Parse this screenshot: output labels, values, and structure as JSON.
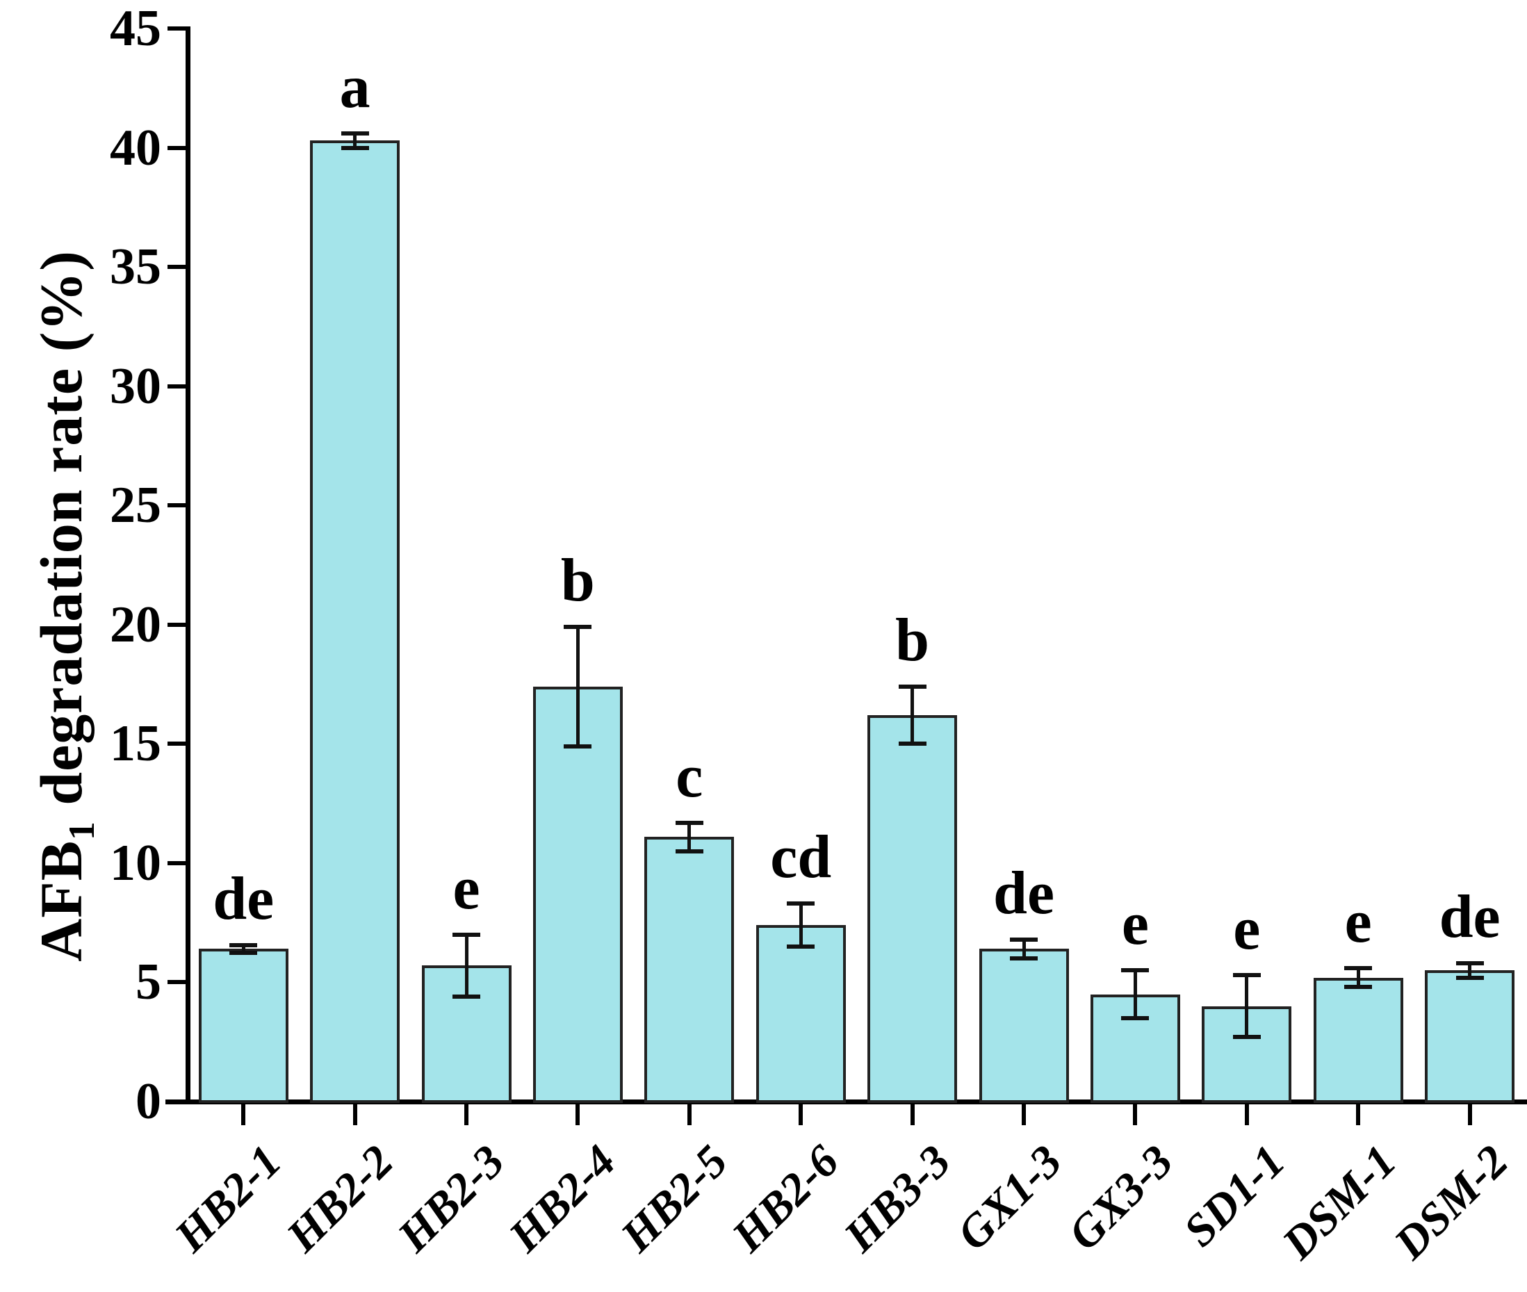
{
  "figure": {
    "ylabel_parts": {
      "prefix": "AFB",
      "sub": "1",
      "suffix": " degradation rate (%)"
    }
  },
  "chart_data": {
    "type": "bar",
    "title": "",
    "xlabel": "",
    "ylabel": "AFB1 degradation rate (%)",
    "categories": [
      "HB2-1",
      "HB2-2",
      "HB2-3",
      "HB2-4",
      "HB2-5",
      "HB2-6",
      "HB3-3",
      "GX1-3",
      "GX3-3",
      "SD1-1",
      "DSM-1",
      "DSM-2"
    ],
    "values": [
      6.4,
      40.3,
      5.7,
      17.4,
      11.1,
      7.4,
      16.2,
      6.4,
      4.5,
      4.0,
      5.2,
      5.5
    ],
    "errors": [
      0.15,
      0.3,
      1.3,
      2.5,
      0.6,
      0.9,
      1.2,
      0.4,
      1.0,
      1.3,
      0.4,
      0.3
    ],
    "sig_letters": [
      "de",
      "a",
      "e",
      "b",
      "c",
      "cd",
      "b",
      "de",
      "e",
      "e",
      "e",
      "de"
    ],
    "ylim": [
      0,
      45
    ],
    "yticks": [
      0,
      5,
      10,
      15,
      20,
      25,
      30,
      35,
      40,
      45
    ],
    "grid": false,
    "legend": null,
    "bar_color": "#a4e4ea",
    "bar_edge_color": "#222222",
    "error_color": "#111111",
    "text_color": "#000000"
  }
}
